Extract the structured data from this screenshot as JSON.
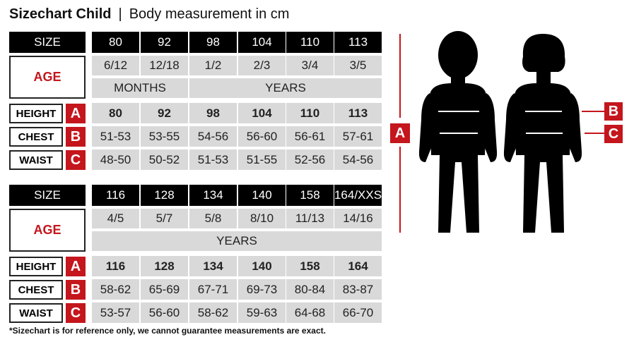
{
  "title": {
    "bold": "Sizechart Child",
    "separator": "|",
    "subtitle": "Body measurement in cm"
  },
  "labels": {
    "size": "SIZE",
    "age": "AGE",
    "height": "HEIGHT",
    "chest": "CHEST",
    "waist": "WAIST",
    "a": "A",
    "b": "B",
    "c": "C"
  },
  "tables": [
    {
      "sizes": [
        "80",
        "92",
        "98",
        "104",
        "110",
        "113"
      ],
      "ages": [
        "6/12",
        "12/18",
        "1/2",
        "2/3",
        "3/4",
        "3/5"
      ],
      "age_units": [
        {
          "label": "MONTHS",
          "span": 2
        },
        {
          "label": "YEARS",
          "span": 4
        }
      ],
      "height": [
        "80",
        "92",
        "98",
        "104",
        "110",
        "113"
      ],
      "chest": [
        "51-53",
        "53-55",
        "54-56",
        "56-60",
        "56-61",
        "57-61"
      ],
      "waist": [
        "48-50",
        "50-52",
        "51-53",
        "51-55",
        "52-56",
        "54-56"
      ]
    },
    {
      "sizes": [
        "116",
        "128",
        "134",
        "140",
        "158",
        "164/XXS"
      ],
      "ages": [
        "4/5",
        "5/7",
        "5/8",
        "8/10",
        "11/13",
        "14/16"
      ],
      "age_units": [
        {
          "label": "YEARS",
          "span": 6
        }
      ],
      "height": [
        "116",
        "128",
        "134",
        "140",
        "158",
        "164"
      ],
      "chest": [
        "58-62",
        "65-69",
        "67-71",
        "69-73",
        "80-84",
        "83-87"
      ],
      "waist": [
        "53-57",
        "56-60",
        "58-62",
        "59-63",
        "64-68",
        "66-70"
      ]
    }
  ],
  "footnote": "*Sizechart is for reference only, we cannot guarantee measurements are exact.",
  "colors": {
    "accent": "#c4161c",
    "header": "#000000",
    "cell": "#d9d9d9"
  }
}
